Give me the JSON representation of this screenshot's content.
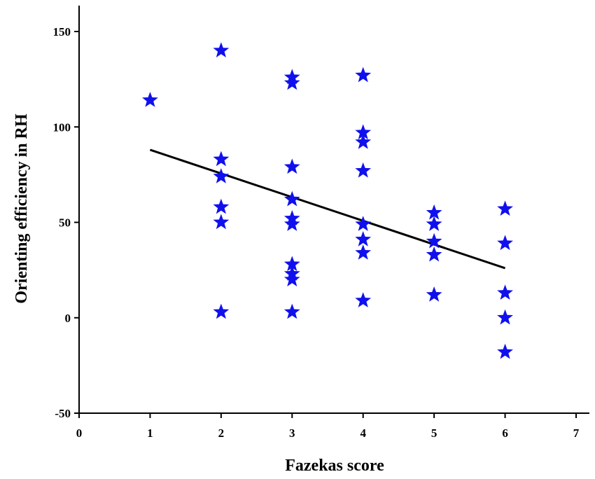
{
  "chart_data": {
    "type": "scatter",
    "title": "",
    "xlabel": "Fazekas score",
    "ylabel": "Orienting efficiency in RH",
    "xlim": [
      0,
      7
    ],
    "ylim": [
      -50,
      150
    ],
    "x_ticks": [
      0,
      1,
      2,
      3,
      4,
      5,
      6,
      7
    ],
    "y_ticks": [
      -50,
      0,
      50,
      100,
      150
    ],
    "grid": false,
    "legend": "none",
    "marker": "star-icon",
    "marker_color": "#1010ee",
    "series": [
      {
        "points": [
          [
            1,
            114
          ],
          [
            2,
            140
          ],
          [
            2,
            83
          ],
          [
            2,
            74
          ],
          [
            2,
            58
          ],
          [
            2,
            50
          ],
          [
            2,
            3
          ],
          [
            3,
            126
          ],
          [
            3,
            123
          ],
          [
            3,
            79
          ],
          [
            3,
            62
          ],
          [
            3,
            52
          ],
          [
            3,
            49
          ],
          [
            3,
            28
          ],
          [
            3,
            23
          ],
          [
            3,
            20
          ],
          [
            3,
            3
          ],
          [
            4,
            127
          ],
          [
            4,
            97
          ],
          [
            4,
            92
          ],
          [
            4,
            77
          ],
          [
            4,
            49
          ],
          [
            4,
            41
          ],
          [
            4,
            34
          ],
          [
            4,
            9
          ],
          [
            5,
            55
          ],
          [
            5,
            49
          ],
          [
            5,
            40
          ],
          [
            5,
            33
          ],
          [
            5,
            12
          ],
          [
            6,
            57
          ],
          [
            6,
            39
          ],
          [
            6,
            13
          ],
          [
            6,
            0
          ],
          [
            6,
            -18
          ]
        ]
      }
    ],
    "fit_line": {
      "x": [
        1,
        6
      ],
      "y": [
        88,
        26
      ],
      "color": "#000000"
    }
  }
}
